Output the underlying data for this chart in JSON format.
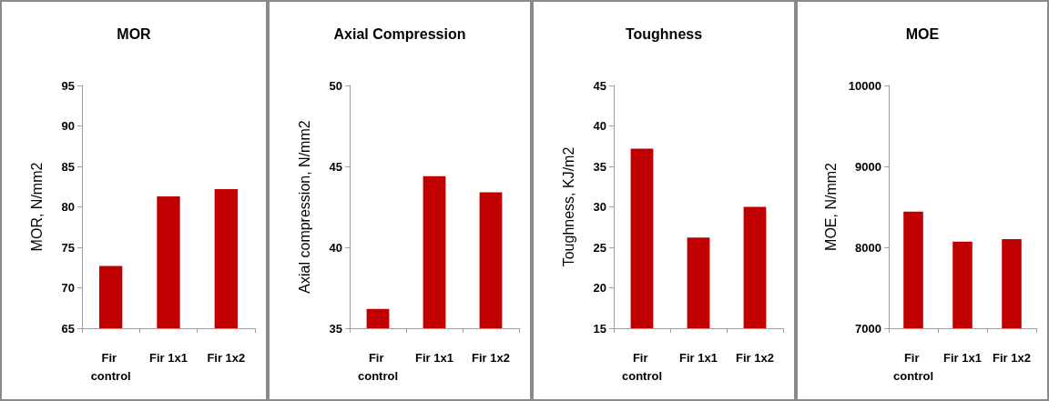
{
  "chart_data": [
    {
      "type": "bar",
      "title": "MOR",
      "ylabel": "MOR, N/mm2",
      "categories": [
        "Fir control",
        "Fir 1x1",
        "Fir 1x2"
      ],
      "values": [
        72.7,
        81.3,
        82.2
      ],
      "color": "#c00000",
      "ylim": [
        65,
        95
      ],
      "yticks": [
        65,
        70,
        75,
        80,
        85,
        90,
        95
      ]
    },
    {
      "type": "bar",
      "title": "Axial Compression",
      "ylabel": "Axial compression, N/mm2",
      "categories": [
        "Fir control",
        "Fir 1x1",
        "Fir 1x2"
      ],
      "values": [
        36.2,
        44.4,
        43.4
      ],
      "color": "#c00000",
      "ylim": [
        35,
        50
      ],
      "yticks": [
        35,
        40,
        45,
        50
      ]
    },
    {
      "type": "bar",
      "title": "Toughness",
      "ylabel": "Toughness, KJ/m2",
      "categories": [
        "Fir control",
        "Fir 1x1",
        "Fir 1x2"
      ],
      "values": [
        37.2,
        26.2,
        30.0
      ],
      "color": "#c00000",
      "ylim": [
        15,
        45
      ],
      "yticks": [
        15,
        20,
        25,
        30,
        35,
        40,
        45
      ]
    },
    {
      "type": "bar",
      "title": "MOE",
      "ylabel": "MOE, N/mm2",
      "categories": [
        "Fir control",
        "Fir 1x1",
        "Fir 1x2"
      ],
      "values": [
        8440,
        8070,
        8100
      ],
      "color": "#c00000",
      "ylim": [
        7000,
        10000
      ],
      "yticks": [
        7000,
        8000,
        9000,
        10000
      ]
    }
  ]
}
